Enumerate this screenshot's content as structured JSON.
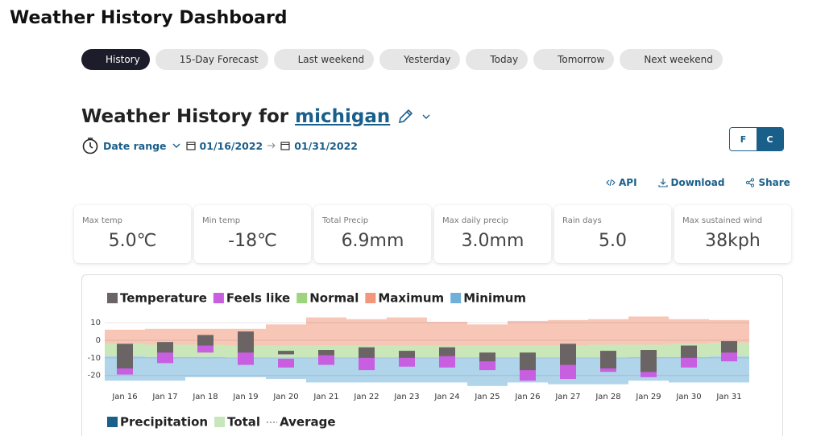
{
  "header": {
    "title": "Weather History Dashboard"
  },
  "tabs": [
    "History",
    "15-Day Forecast",
    "Last weekend",
    "Yesterday",
    "Today",
    "Tomorrow",
    "Next weekend"
  ],
  "location": {
    "prefix": "Weather History for",
    "name": "michigan"
  },
  "date_range": {
    "label": "Date range",
    "start": "01/16/2022",
    "end": "01/31/2022"
  },
  "units": [
    "F",
    "C"
  ],
  "actions": [
    "API",
    "Download",
    "Share"
  ],
  "stats": [
    {
      "label": "Max temp",
      "value": "5.0℃"
    },
    {
      "label": "Min temp",
      "value": "-18℃"
    },
    {
      "label": "Total Precip",
      "value": "6.9mm"
    },
    {
      "label": "Max daily precip",
      "value": "3.0mm"
    },
    {
      "label": "Rain days",
      "value": "5.0"
    },
    {
      "label": "Max sustained wind",
      "value": "38kph"
    }
  ],
  "chart_data": [
    {
      "type": "range_bar",
      "categories": [
        "Jan 16",
        "Jan 17",
        "Jan 18",
        "Jan 19",
        "Jan 20",
        "Jan 21",
        "Jan 22",
        "Jan 23",
        "Jan 24",
        "Jan 25",
        "Jan 26",
        "Jan 27",
        "Jan 28",
        "Jan 29",
        "Jan 30",
        "Jan 31"
      ],
      "ylim": [
        -27,
        16
      ],
      "yticks": [
        10,
        0,
        -10,
        -20
      ],
      "grid": true,
      "series": [
        {
          "name": "Temperature",
          "color": "#6b6464",
          "low": [
            -16,
            -7,
            -3,
            -7,
            -8,
            -8.5,
            -10,
            -10,
            -9,
            -12,
            -17,
            -14,
            -16,
            -18,
            -10,
            -7
          ],
          "high": [
            -2,
            -1,
            3,
            5,
            -6,
            -5.5,
            -4,
            -6,
            -4,
            -7,
            -7,
            -2,
            -6,
            -5.5,
            -3,
            -0.5
          ]
        },
        {
          "name": "Feels like",
          "color": "#c85ee0",
          "low": [
            -19.5,
            -13,
            -7,
            -14,
            -15.5,
            -14,
            -17,
            -15,
            -15.5,
            -17,
            -23,
            -22,
            -18,
            -21,
            -15.5,
            -12
          ],
          "high": [
            -5,
            -4,
            0,
            1,
            -10.5,
            -8,
            -8,
            -8,
            -7,
            -10,
            -11,
            -7,
            -10,
            -10,
            -8,
            -4
          ]
        },
        {
          "name": "Normal",
          "color": "#9fd47f",
          "low": [
            -9,
            -9.5,
            -9.5,
            -10,
            -10,
            -10,
            -10,
            -10,
            -10,
            -10,
            -10,
            -10,
            -10,
            -9.5,
            -9.5,
            -9
          ],
          "high": [
            -2,
            -2.5,
            -2.5,
            -3,
            -3,
            -3,
            -3,
            -3,
            -3,
            -3,
            -3,
            -3,
            -2.5,
            -2.5,
            -2,
            -1.5
          ]
        },
        {
          "name": "Maximum",
          "color": "#f2977b",
          "values": [
            6,
            6.5,
            6.5,
            6.5,
            9,
            13,
            12,
            13,
            10.5,
            9,
            11,
            11.5,
            12,
            13.5,
            12,
            11.5
          ]
        },
        {
          "name": "Minimum",
          "color": "#6fb0d8",
          "values": [
            -23,
            -23,
            -21,
            -21,
            -22,
            -24,
            -24,
            -24,
            -24,
            -26,
            -24,
            -25,
            -25,
            -23,
            -24,
            -24
          ]
        }
      ]
    },
    {
      "type": "bar",
      "series": [
        {
          "name": "Precipitation",
          "color": "#1a5f8a"
        },
        {
          "name": "Total",
          "color": "#c8e6bc"
        },
        {
          "name": "Average",
          "color": "#555555"
        }
      ]
    }
  ]
}
